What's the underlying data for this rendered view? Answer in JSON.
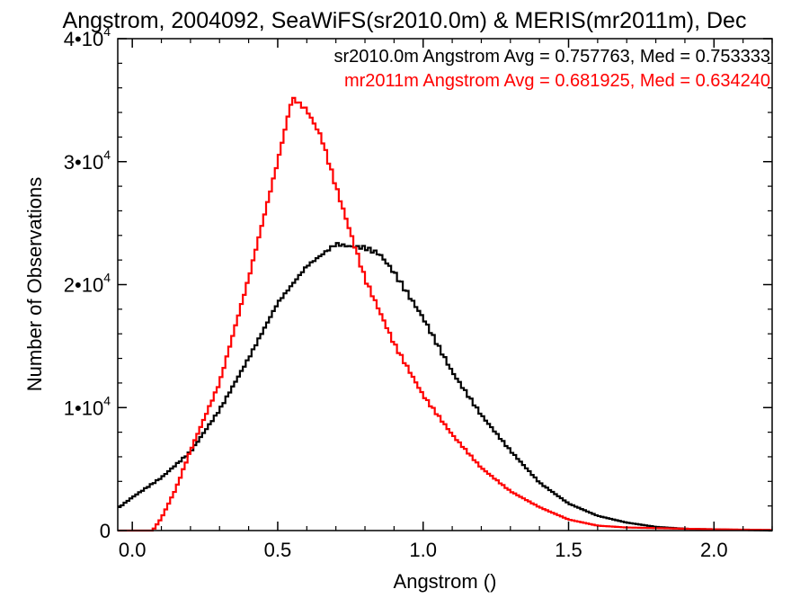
{
  "chart_data": {
    "type": "line",
    "title": "Angstrom, 2004092, SeaWiFS(sr2010.0m) & MERIS(mr2011m), Dec",
    "xlabel": "Angstrom ()",
    "ylabel": "Number of Observations",
    "xlim": [
      -0.05,
      2.2
    ],
    "ylim": [
      0,
      40000
    ],
    "xticks": [
      {
        "value": 0.0,
        "label": "0.0"
      },
      {
        "value": 0.5,
        "label": "0.5"
      },
      {
        "value": 1.0,
        "label": "1.0"
      },
      {
        "value": 1.5,
        "label": "1.5"
      },
      {
        "value": 2.0,
        "label": "2.0"
      }
    ],
    "yticks": [
      {
        "value": 0,
        "mantissa": "0",
        "exponent": ""
      },
      {
        "value": 10000,
        "mantissa": "1•10",
        "exponent": "4"
      },
      {
        "value": 20000,
        "mantissa": "2•10",
        "exponent": "4"
      },
      {
        "value": 30000,
        "mantissa": "3•10",
        "exponent": "4"
      },
      {
        "value": 40000,
        "mantissa": "4•10",
        "exponent": "4"
      }
    ],
    "annotations": [
      {
        "text": "sr2010.0m Angstrom Avg = 0.757763, Med = 0.753333",
        "color": "#000000"
      },
      {
        "text": "mr2011m Angstrom Avg = 0.681925, Med = 0.634240",
        "color": "#ff0000"
      }
    ],
    "series": [
      {
        "color": "#000000",
        "x": [
          -0.05,
          0.0,
          0.1,
          0.2,
          0.3,
          0.4,
          0.5,
          0.6,
          0.7,
          0.75,
          0.8,
          0.85,
          0.9,
          1.0,
          1.1,
          1.2,
          1.3,
          1.4,
          1.5,
          1.6,
          1.7,
          1.8,
          1.9,
          2.0,
          2.1,
          2.2
        ],
        "y": [
          1800,
          2700,
          4300,
          6400,
          9800,
          14000,
          18500,
          21500,
          23300,
          23100,
          23000,
          22500,
          21000,
          17300,
          12900,
          9400,
          6500,
          3900,
          2200,
          1200,
          650,
          300,
          150,
          100,
          50,
          0
        ]
      },
      {
        "color": "#ff0000",
        "x": [
          -0.05,
          0.07,
          0.1,
          0.15,
          0.2,
          0.3,
          0.4,
          0.5,
          0.55,
          0.6,
          0.65,
          0.7,
          0.8,
          0.9,
          1.0,
          1.1,
          1.2,
          1.3,
          1.4,
          1.5,
          1.6,
          1.7,
          1.8,
          1.9,
          2.0,
          2.2
        ],
        "y": [
          0,
          0,
          1000,
          3400,
          6500,
          12000,
          20500,
          30000,
          35200,
          34200,
          32000,
          28000,
          20500,
          15200,
          11000,
          7800,
          5100,
          3200,
          1900,
          900,
          400,
          250,
          200,
          150,
          100,
          50
        ]
      }
    ]
  }
}
